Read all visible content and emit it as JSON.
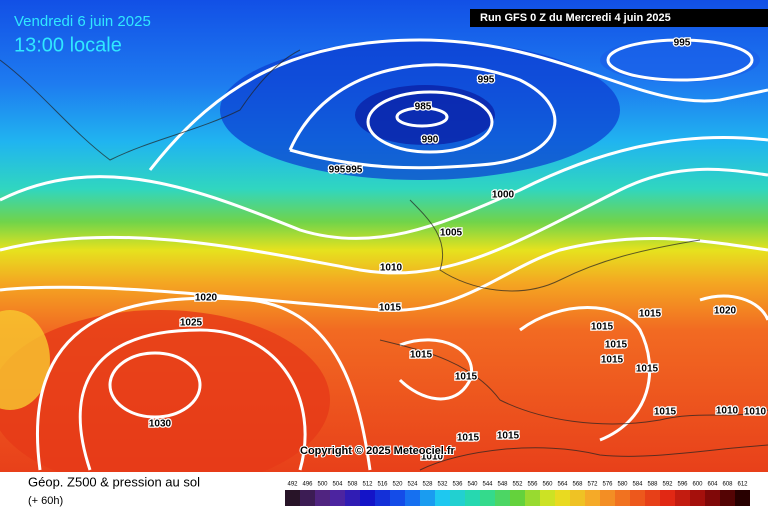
{
  "header": {
    "date": "Vendredi 6 juin 2025",
    "time": "13:00 locale",
    "run": "Run GFS 0 Z du Mercredi 4 juin 2025"
  },
  "isobar_labels": [
    995,
    995,
    985,
    990,
    995,
    995,
    1000,
    1005,
    1010,
    1015,
    1020,
    1025,
    1030,
    1015,
    1015,
    1015,
    1015,
    1020,
    1015,
    1015,
    1015,
    1015,
    1010,
    1010,
    1015,
    1015,
    1010
  ],
  "copyright": "Copyright © 2025 Meteociel.fr",
  "legend": {
    "title": "Géop. Z500 & pression au sol",
    "lead": "(+ 60h)",
    "scale": [
      492,
      496,
      500,
      504,
      508,
      512,
      516,
      520,
      524,
      528,
      532,
      536,
      540,
      544,
      548,
      552,
      556,
      560,
      564,
      568,
      572,
      576,
      580,
      584,
      588,
      592,
      596,
      600,
      604,
      608,
      612
    ]
  }
}
